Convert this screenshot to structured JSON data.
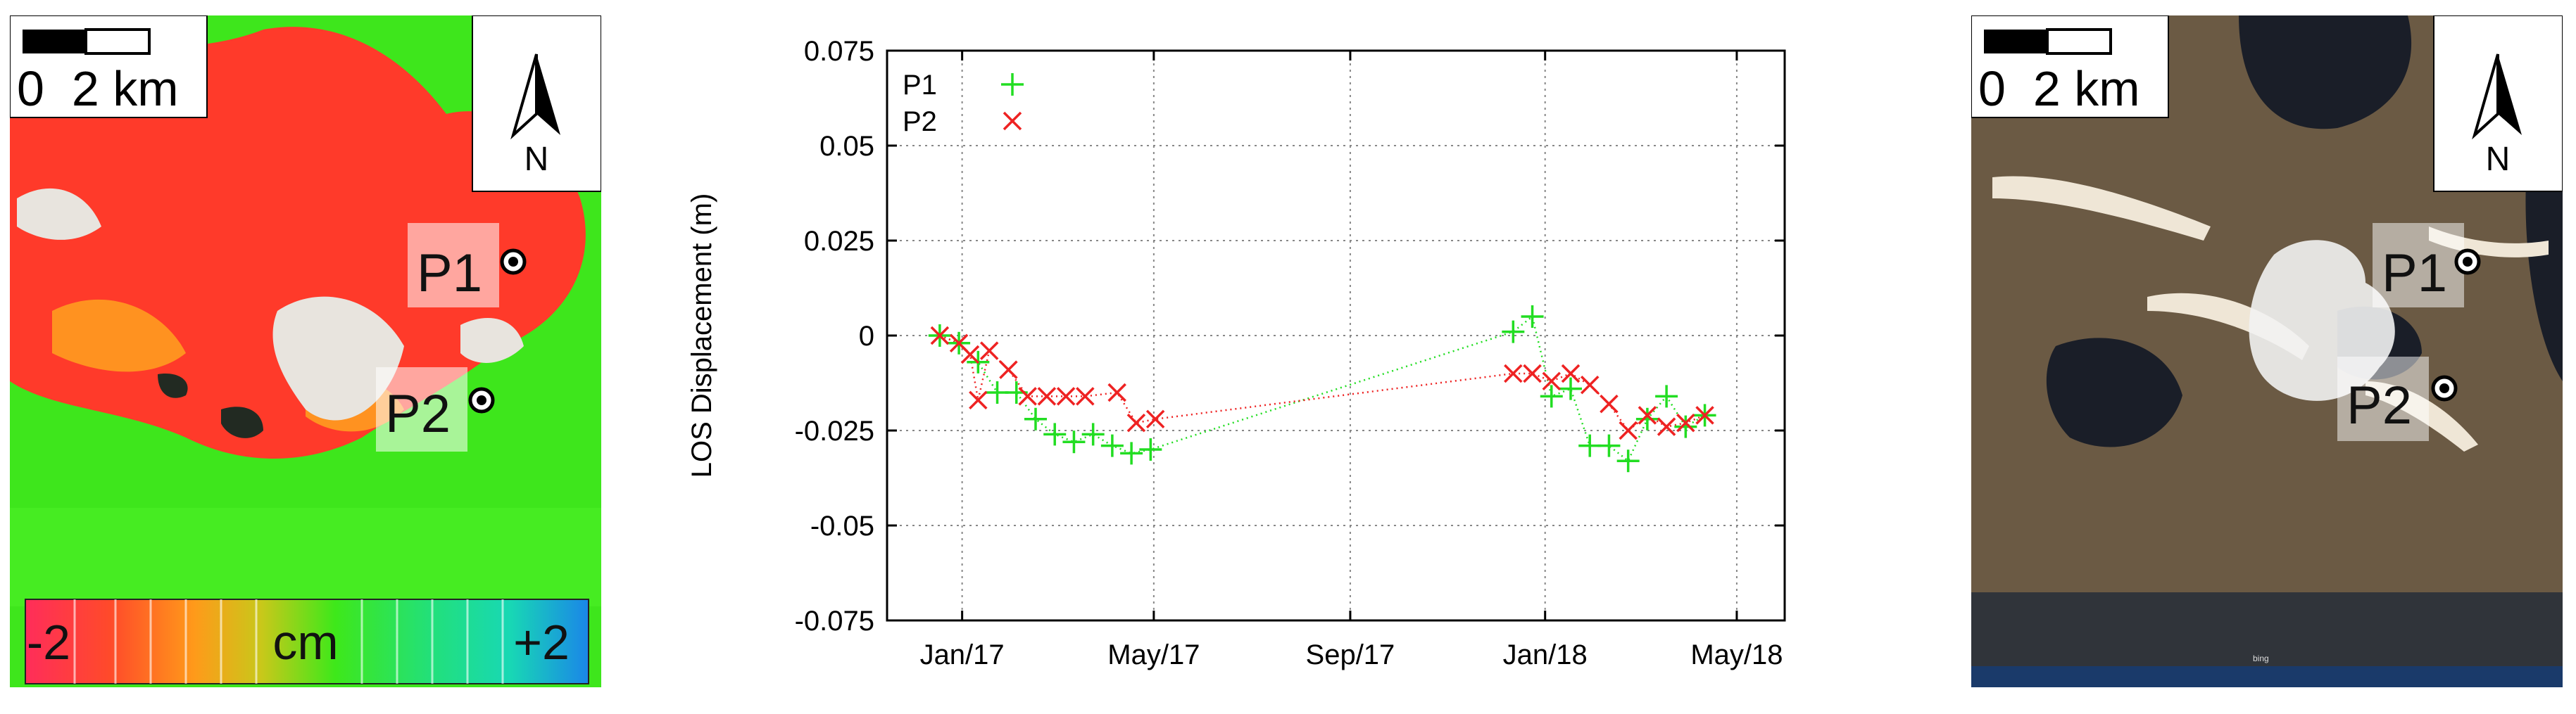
{
  "left_map": {
    "scale_label": "0  2 km",
    "north_label": "N",
    "points": [
      {
        "label": "P1"
      },
      {
        "label": "P2"
      }
    ],
    "colorbar": {
      "min_label": "-2",
      "unit_label": "cm",
      "max_label": "+2"
    }
  },
  "right_map": {
    "scale_label": "0  2 km",
    "north_label": "N",
    "points": [
      {
        "label": "P1"
      },
      {
        "label": "P2"
      }
    ],
    "attribution": "bing"
  },
  "chart_data": {
    "type": "scatter",
    "title": "",
    "xlabel": "",
    "ylabel": "LOS Displacement (m)",
    "xlim": [
      "2016-11-15",
      "2018-05-31"
    ],
    "ylim": [
      -0.075,
      0.075
    ],
    "yticks": [
      -0.075,
      -0.05,
      -0.025,
      0,
      0.025,
      0.05,
      0.075
    ],
    "ytick_labels": [
      "-0.075",
      "-0.05",
      "-0.025",
      "0",
      "0.025",
      "0.05",
      "0.075"
    ],
    "xticks": [
      "2017-01-01",
      "2017-05-01",
      "2017-09-01",
      "2018-01-01",
      "2018-05-01"
    ],
    "xtick_labels": [
      "Jan/17",
      "May/17",
      "Sep/17",
      "Jan/18",
      "May/18"
    ],
    "grid": true,
    "legend_position": "top-left",
    "series": [
      {
        "name": "P1",
        "marker": "plus",
        "color": "#22dd22",
        "line": "dotted",
        "x": [
          "2016-12-18",
          "2016-12-30",
          "2017-01-11",
          "2017-01-23",
          "2017-02-04",
          "2017-02-16",
          "2017-02-28",
          "2017-03-12",
          "2017-03-24",
          "2017-04-05",
          "2017-04-17",
          "2017-04-29",
          "2017-12-12",
          "2017-12-24",
          "2018-01-05",
          "2018-01-17",
          "2018-01-29",
          "2018-02-10",
          "2018-02-22",
          "2018-03-06",
          "2018-03-18",
          "2018-03-30",
          "2018-04-11"
        ],
        "y": [
          0.0,
          -0.002,
          -0.007,
          -0.015,
          -0.015,
          -0.022,
          -0.026,
          -0.028,
          -0.026,
          -0.029,
          -0.031,
          -0.03,
          0.001,
          0.005,
          -0.016,
          -0.014,
          -0.029,
          -0.029,
          -0.033,
          -0.022,
          -0.016,
          -0.024,
          -0.021
        ]
      },
      {
        "name": "P2",
        "marker": "x",
        "color": "#ee2222",
        "line": "dotted",
        "x": [
          "2016-12-18",
          "2016-12-30",
          "2017-01-06",
          "2017-01-11",
          "2017-01-18",
          "2017-01-30",
          "2017-02-11",
          "2017-02-23",
          "2017-03-07",
          "2017-03-19",
          "2017-04-08",
          "2017-04-20",
          "2017-05-02",
          "2017-12-12",
          "2017-12-24",
          "2018-01-05",
          "2018-01-17",
          "2018-01-29",
          "2018-02-10",
          "2018-02-22",
          "2018-03-06",
          "2018-03-18",
          "2018-03-30",
          "2018-04-11"
        ],
        "y": [
          0.0,
          -0.002,
          -0.005,
          -0.017,
          -0.004,
          -0.009,
          -0.016,
          -0.016,
          -0.016,
          -0.016,
          -0.015,
          -0.023,
          -0.022,
          -0.01,
          -0.01,
          -0.012,
          -0.01,
          -0.013,
          -0.018,
          -0.025,
          -0.021,
          -0.024,
          -0.023,
          -0.021
        ]
      }
    ]
  }
}
